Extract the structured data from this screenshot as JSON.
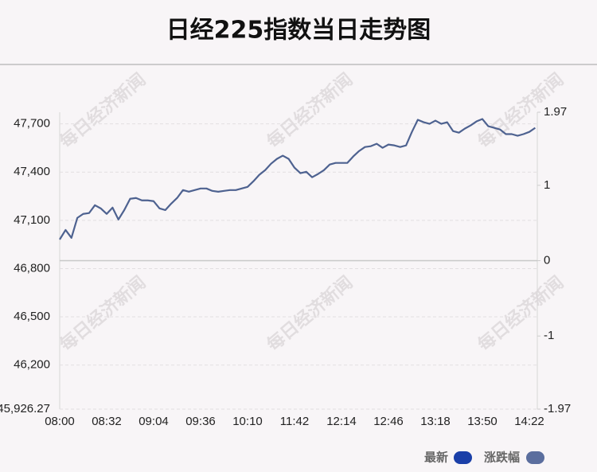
{
  "chart_data": {
    "type": "line",
    "title": "日经225指数当日走势图",
    "watermark": "每日经济新闻",
    "categories": [
      "08:00",
      null,
      null,
      null,
      null,
      null,
      null,
      null,
      "08:32",
      null,
      null,
      null,
      null,
      null,
      null,
      null,
      "09:04",
      null,
      null,
      null,
      null,
      null,
      null,
      null,
      "09:36",
      null,
      null,
      null,
      null,
      null,
      null,
      null,
      "10:10",
      null,
      null,
      null,
      null,
      null,
      null,
      null,
      "11:42",
      null,
      null,
      null,
      null,
      null,
      null,
      null,
      "12:14",
      null,
      null,
      null,
      null,
      null,
      null,
      null,
      "12:46",
      null,
      null,
      null,
      null,
      null,
      null,
      null,
      "13:18",
      null,
      null,
      null,
      null,
      null,
      null,
      null,
      "13:50",
      null,
      null,
      null,
      null,
      null,
      null,
      null,
      "14:22",
      null
    ],
    "values": [
      46981,
      47040,
      46991,
      47115,
      47140,
      47145,
      47194,
      47174,
      47140,
      47179,
      47105,
      47164,
      47234,
      47239,
      47224,
      47224,
      47219,
      47174,
      47164,
      47204,
      47239,
      47288,
      47278,
      47288,
      47298,
      47298,
      47283,
      47278,
      47283,
      47288,
      47288,
      47298,
      47308,
      47343,
      47383,
      47412,
      47452,
      47482,
      47502,
      47482,
      47427,
      47393,
      47402,
      47368,
      47388,
      47412,
      47447,
      47457,
      47457,
      47457,
      47497,
      47531,
      47556,
      47561,
      47576,
      47551,
      47571,
      47566,
      47556,
      47566,
      47650,
      47725,
      47710,
      47700,
      47720,
      47700,
      47710,
      47655,
      47645,
      47670,
      47690,
      47715,
      47730,
      47685,
      47675,
      47665,
      47636,
      47636,
      47626,
      47636,
      47650,
      47675
    ],
    "color": "#4e6290",
    "ylim": [
      45926.27,
      47772.1
    ],
    "yticks": [
      {
        "value": 45926.27,
        "label": "45,926.27"
      },
      {
        "value": 46200,
        "label": "46,200"
      },
      {
        "value": 46500,
        "label": "46,500"
      },
      {
        "value": 46800,
        "label": "46,800"
      },
      {
        "value": 47100,
        "label": "47,100"
      },
      {
        "value": 47400,
        "label": "47,400"
      },
      {
        "value": 47700,
        "label": "47,700"
      }
    ],
    "y2lim": [
      -1.97,
      1.97
    ],
    "y2ticks": [
      -1.97,
      -1,
      0,
      1,
      1.97
    ],
    "grid": true,
    "legend": [
      {
        "name": "最新",
        "color": "#1a3fa8"
      },
      {
        "name": "涨跌幅",
        "color": "#5b6e9e"
      }
    ]
  }
}
